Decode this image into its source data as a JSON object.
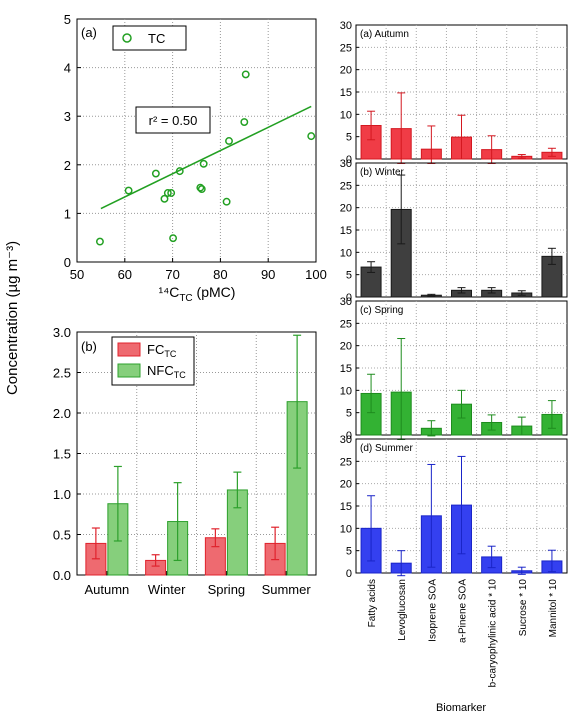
{
  "figure": {
    "shared_ylabel": "Concentration (µg m⁻³)",
    "biomarker_xlabel": "Biomarker"
  },
  "chart_data": [
    {
      "panel": "a",
      "panel_label": "(a)",
      "type": "scatter",
      "xlabel": "¹⁴C_TC (pMC)",
      "ylabel": "Concentration (µg m⁻³)",
      "xlim": [
        50,
        100
      ],
      "ylim": [
        0,
        5
      ],
      "x_ticks": [
        50,
        60,
        70,
        80,
        90,
        100
      ],
      "y_ticks": [
        0,
        1,
        2,
        3,
        4,
        5
      ],
      "grid": true,
      "legend": {
        "placement": "top-left",
        "entries": [
          "TC"
        ]
      },
      "annotation": "r² = 0.50",
      "series": [
        {
          "name": "TC",
          "color": "#22a022",
          "points": [
            [
              54.8,
              0.42
            ],
            [
              60.8,
              1.47
            ],
            [
              66.5,
              1.82
            ],
            [
              68.3,
              1.3
            ],
            [
              69.0,
              1.42
            ],
            [
              69.7,
              1.42
            ],
            [
              70.1,
              0.49
            ],
            [
              71.5,
              1.87
            ],
            [
              75.8,
              1.53
            ],
            [
              76.1,
              1.5
            ],
            [
              76.5,
              2.02
            ],
            [
              81.3,
              1.24
            ],
            [
              81.8,
              2.49
            ],
            [
              85.0,
              2.88
            ],
            [
              85.3,
              3.86
            ],
            [
              99.0,
              2.59
            ]
          ]
        }
      ],
      "fit_line": {
        "x": [
          55,
          99
        ],
        "y": [
          1.1,
          3.2
        ]
      }
    },
    {
      "panel": "b",
      "panel_label": "(b)",
      "type": "bar",
      "categories": [
        "Autumn",
        "Winter",
        "Spring",
        "Summer"
      ],
      "ylim": [
        0,
        3.0
      ],
      "y_ticks": [
        "0.0",
        "0.5",
        "1.0",
        "1.5",
        "2.0",
        "2.5",
        "3.0"
      ],
      "grid": true,
      "legend": {
        "placement": "top-left"
      },
      "series": [
        {
          "name": "FC",
          "name_sub": "TC",
          "color": "#ee6a70",
          "stroke": "#e0232d",
          "values": [
            0.39,
            0.18,
            0.46,
            0.39
          ],
          "err": [
            0.19,
            0.07,
            0.11,
            0.2
          ]
        },
        {
          "name": "NFC",
          "name_sub": "TC",
          "color": "#86cf7c",
          "stroke": "#2da02c",
          "values": [
            0.88,
            0.66,
            1.05,
            2.14
          ],
          "err": [
            0.46,
            0.48,
            0.22,
            0.82
          ]
        }
      ]
    },
    {
      "type": "bar",
      "panels": [
        {
          "panel_label": "(a) Autumn",
          "color": "#f03c46",
          "stroke": "#d41820",
          "values": [
            7.5,
            6.8,
            2.2,
            4.9,
            2.1,
            0.6,
            1.5
          ],
          "err": [
            3.2,
            8.0,
            5.2,
            4.9,
            3.1,
            0.4,
            0.9
          ]
        },
        {
          "panel_label": "(b) Winter",
          "color": "#3f3f3f",
          "stroke": "#1a1a1a",
          "values": [
            6.7,
            19.6,
            0.4,
            1.5,
            1.5,
            0.9,
            9.1
          ],
          "err": [
            1.2,
            7.7,
            0.2,
            0.6,
            0.6,
            0.5,
            1.8
          ]
        },
        {
          "panel_label": "(c) Spring",
          "color": "#33b233",
          "stroke": "#1e8c1e",
          "values": [
            9.3,
            9.6,
            1.5,
            6.9,
            2.8,
            2.0,
            4.6
          ],
          "err": [
            4.3,
            12.0,
            1.7,
            3.1,
            1.7,
            2.0,
            3.1
          ]
        },
        {
          "panel_label": "(d) Summer",
          "color": "#3440f0",
          "stroke": "#1a25c8",
          "values": [
            10.0,
            2.2,
            12.8,
            15.2,
            3.6,
            0.5,
            2.7
          ],
          "err": [
            7.3,
            2.8,
            11.5,
            10.9,
            2.4,
            0.8,
            2.4
          ]
        }
      ],
      "categories": [
        "Fatty acids",
        "Levoglucosan",
        "Isoprene SOA",
        "a-Pinene SOA",
        "b-caryophylinic acid * 10",
        "Sucrose * 10",
        "Mannitol * 10"
      ],
      "ylim": [
        0,
        30
      ],
      "y_ticks": [
        0,
        5,
        10,
        15,
        20,
        25,
        30
      ],
      "xlabel": "Biomarker",
      "grid": true
    }
  ]
}
